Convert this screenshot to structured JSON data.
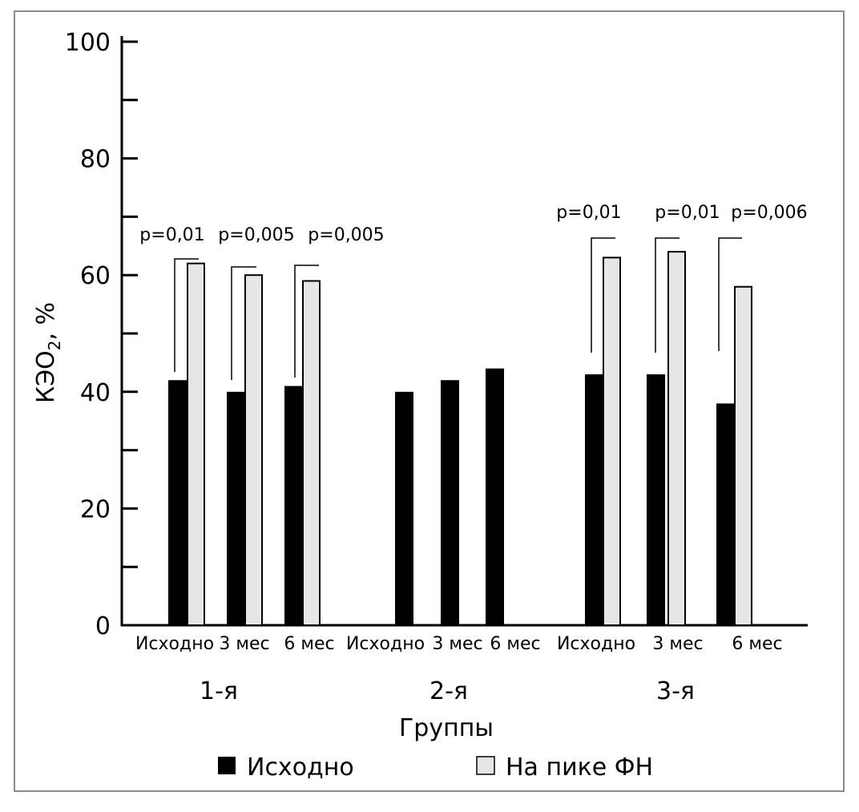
{
  "chart_data": {
    "type": "bar",
    "title": "",
    "ylabel": "КЭО",
    "ylabel_sub": "2",
    "ylabel_unit": ", %",
    "xlabel": "Группы",
    "ylim": [
      0,
      100
    ],
    "yticks": [
      0,
      20,
      40,
      60,
      80,
      100
    ],
    "groups": [
      "1-я",
      "2-я",
      "3-я"
    ],
    "categories": [
      "Исходно",
      "3 мес",
      "6 мес",
      "Исходно",
      "3 мес",
      "6 мес",
      "Исходно",
      "3 мес",
      "6 мес"
    ],
    "series": [
      {
        "name": "Исходно",
        "color": "#000000",
        "values": [
          42,
          40,
          41,
          40,
          42,
          44,
          43,
          43,
          38
        ]
      },
      {
        "name": "На пике ФН",
        "color": "#e6e6e6",
        "values": [
          62,
          60,
          59,
          null,
          null,
          null,
          63,
          64,
          58
        ]
      }
    ],
    "annotations": [
      "p=0,01",
      "p=0,005",
      "p=0,005",
      null,
      null,
      null,
      "p=0,01",
      "p=0,01",
      "p=0,006"
    ],
    "legend": {
      "placement": "bottom",
      "items": [
        "Исходно",
        "На пике ФН"
      ]
    }
  }
}
